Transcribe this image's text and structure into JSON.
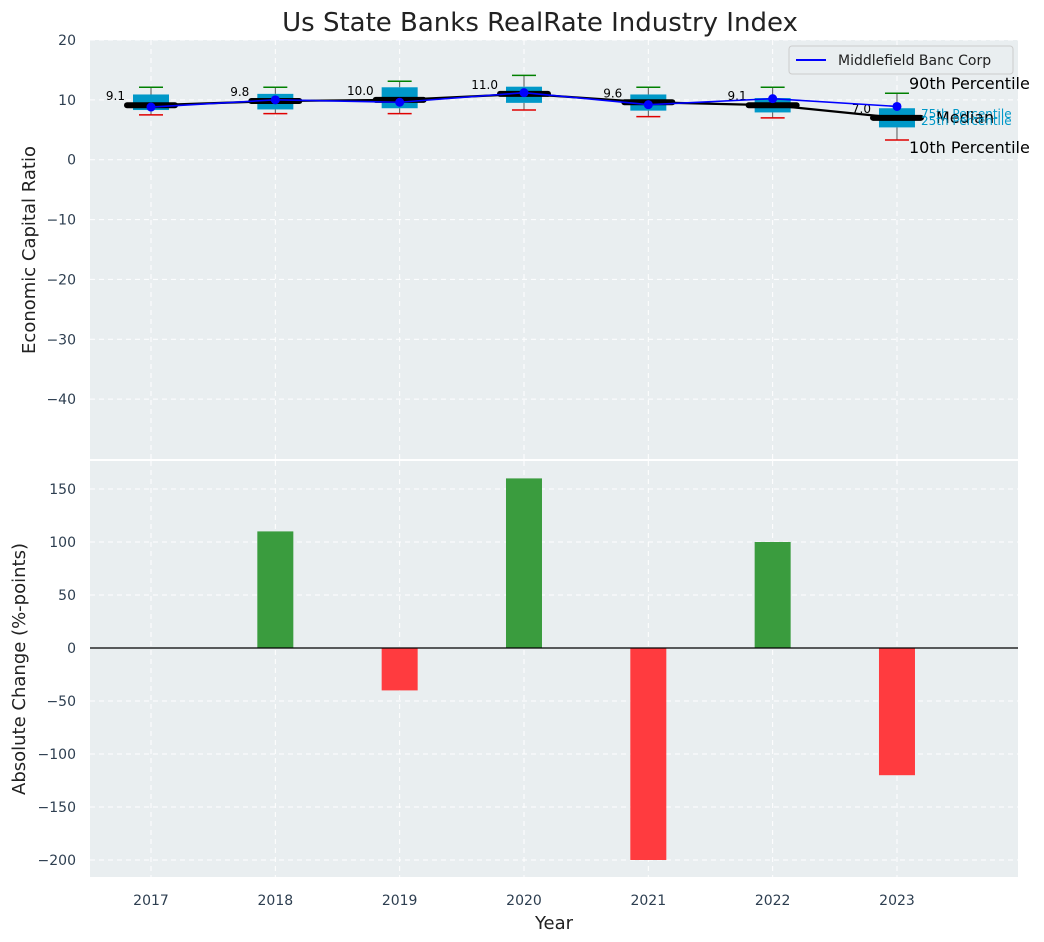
{
  "chart_data": [
    {
      "type": "box",
      "title": "Us State Banks RealRate Industry Index",
      "ylabel": "Economic Capital Ratio",
      "ylim": [
        -50,
        20
      ],
      "yticks": [
        20,
        10,
        0,
        -10,
        -20,
        -30,
        -40
      ],
      "categories": [
        "2017",
        "2018",
        "2019",
        "2020",
        "2021",
        "2022",
        "2023"
      ],
      "p10": [
        7.5,
        7.7,
        7.7,
        8.3,
        7.2,
        7.0,
        3.3
      ],
      "p25": [
        8.3,
        8.4,
        8.6,
        9.5,
        8.2,
        7.9,
        5.4
      ],
      "median": [
        9.1,
        9.8,
        10.0,
        11.0,
        9.6,
        9.1,
        7.0
      ],
      "p75": [
        10.9,
        11.0,
        12.1,
        12.2,
        10.9,
        10.3,
        8.6
      ],
      "p90": [
        12.1,
        12.1,
        13.1,
        14.1,
        12.1,
        12.1,
        11.1
      ],
      "median_labels": [
        "9.1",
        "9.8",
        "10.0",
        "11.0",
        "9.6",
        "9.1",
        "7.0"
      ],
      "series": [
        {
          "name": "Middlefield Banc Corp",
          "values": [
            8.8,
            10.0,
            9.6,
            11.2,
            9.2,
            10.2,
            8.9
          ],
          "color": "#0000ff"
        }
      ],
      "percentile_labels": {
        "p90": "90th Percentile",
        "p75": "75th Percentile",
        "median": "Median",
        "p25": "25th Percentile",
        "p10": "10th Percentile"
      },
      "box_color": "#0098c8",
      "whisker_top_color": "#008000",
      "whisker_bottom_color": "#e00000",
      "legend_position": "top-right"
    },
    {
      "type": "bar",
      "xlabel": "Year",
      "ylabel": "Absolute Change (%-points)",
      "ylim": [
        -215,
        185
      ],
      "yticks": [
        150,
        100,
        50,
        0,
        -50,
        -100,
        -150,
        -200
      ],
      "categories": [
        "2017",
        "2018",
        "2019",
        "2020",
        "2021",
        "2022",
        "2023"
      ],
      "values": [
        0,
        110,
        -40,
        160,
        -200,
        100,
        -120
      ],
      "positive_color": "#3a9c3e",
      "negative_color": "#ff3b3f"
    }
  ]
}
